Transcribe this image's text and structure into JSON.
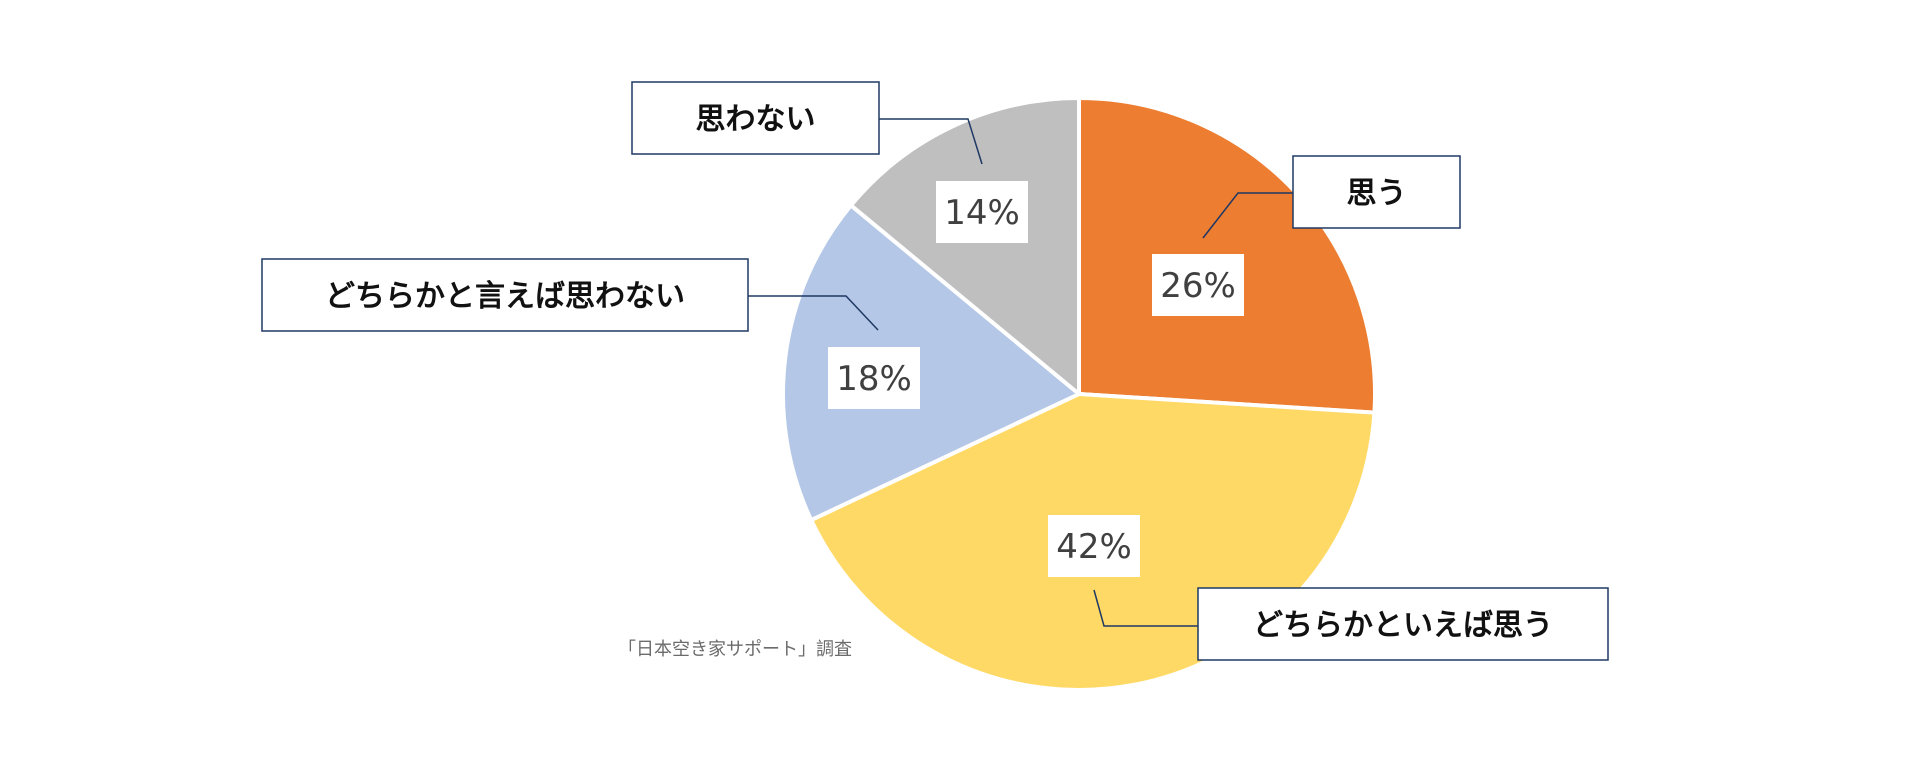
{
  "chart_data": {
    "type": "pie",
    "slices": [
      {
        "label": "思う",
        "value": 26,
        "value_label": "26%",
        "color": "#ED7D31"
      },
      {
        "label": "どちらかといえば思う",
        "value": 42,
        "value_label": "42%",
        "color": "#FFD966"
      },
      {
        "label": "どちらかと言えば思わない",
        "value": 18,
        "value_label": "18%",
        "color": "#B4C7E7"
      },
      {
        "label": "思わない",
        "value": 14,
        "value_label": "14%",
        "color": "#BFBFBF"
      }
    ],
    "start": "12 o'clock",
    "direction": "clockwise",
    "legend": "none (callout labels)",
    "label_border_color": "#1F3864",
    "slice_border_color": "#FFFFFF"
  },
  "source_note": "「日本空き家サポート」調査"
}
